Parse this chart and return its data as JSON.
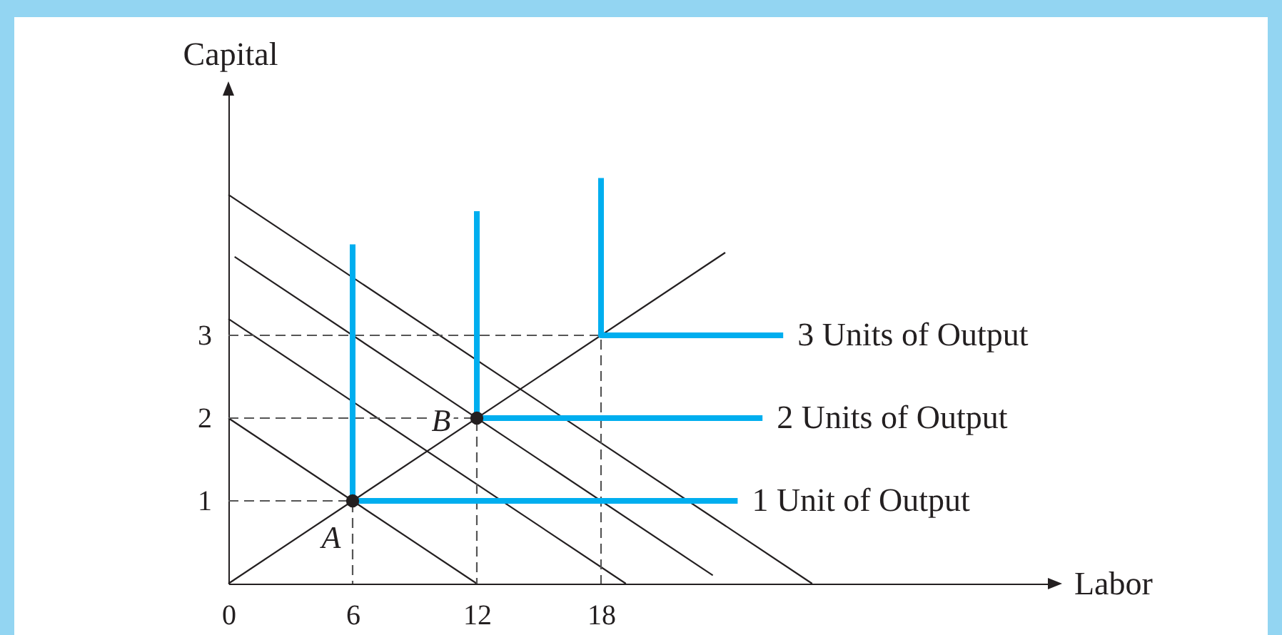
{
  "chart_data": {
    "type": "line",
    "xlabel": "Labor",
    "ylabel": "Capital",
    "xlim": [
      0,
      40
    ],
    "ylim": [
      0,
      6
    ],
    "xticks": [
      0,
      6,
      12,
      18
    ],
    "yticks": [
      1,
      2,
      3
    ],
    "series": [
      {
        "color": "#231f20",
        "x": [
          0,
          12
        ],
        "values": [
          2,
          0
        ]
      },
      {
        "color": "#231f20",
        "x": [
          0,
          19.2
        ],
        "values": [
          3.2,
          0
        ]
      },
      {
        "color": "#231f20",
        "x": [
          0.3,
          23.4
        ],
        "values": [
          3.95,
          0.1
        ]
      },
      {
        "color": "#231f20",
        "x": [
          0,
          28.2
        ],
        "values": [
          4.7,
          0
        ]
      },
      {
        "color": "#231f20",
        "x": [
          0,
          24
        ],
        "values": [
          0,
          4
        ]
      },
      {
        "line_style": "dashed",
        "color": "#555555",
        "x": [
          0,
          6,
          6
        ],
        "values": [
          1,
          1,
          0
        ]
      },
      {
        "line_style": "dashed",
        "color": "#555555",
        "x": [
          0,
          12,
          12
        ],
        "values": [
          2,
          2,
          0
        ]
      },
      {
        "line_style": "dashed",
        "color": "#555555",
        "x": [
          0,
          18,
          18
        ],
        "values": [
          3,
          3,
          0
        ]
      },
      {
        "name": "1 Unit of Output",
        "color": "#00aeef",
        "x": [
          6,
          6,
          24.6
        ],
        "values": [
          4.1,
          1,
          1
        ]
      },
      {
        "name": "2 Units of Output",
        "color": "#00aeef",
        "x": [
          12,
          12,
          25.8
        ],
        "values": [
          4.5,
          2,
          2
        ]
      },
      {
        "name": "3 Units of Output",
        "color": "#00aeef",
        "x": [
          18,
          18,
          26.8
        ],
        "values": [
          4.9,
          3,
          3
        ]
      },
      {
        "type": "scatter",
        "marker": "circle",
        "color": "#231f20",
        "x": [
          6,
          12
        ],
        "values": [
          1,
          2
        ]
      }
    ],
    "annotations": [
      {
        "text": "A",
        "x": 6,
        "y": 1
      },
      {
        "text": "B",
        "x": 12,
        "y": 2
      }
    ]
  }
}
